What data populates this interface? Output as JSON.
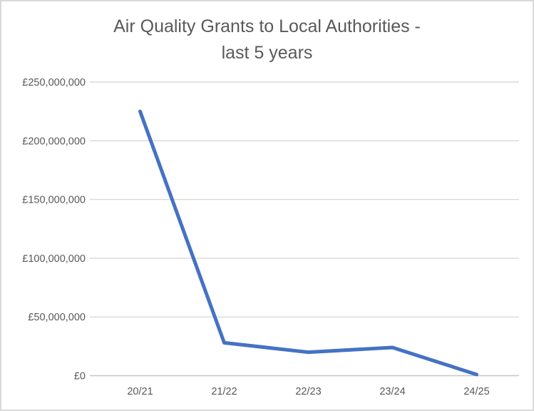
{
  "chart_data": {
    "type": "line",
    "title": "Air Quality Grants to Local Authorities - last 5 years",
    "title_lines": [
      "Air Quality Grants to Local Authorities -",
      "last 5 years"
    ],
    "categories": [
      "20/21",
      "21/22",
      "22/23",
      "23/24",
      "24/25"
    ],
    "values": [
      225000000,
      28000000,
      20000000,
      24000000,
      1000000
    ],
    "xlabel": "",
    "ylabel": "",
    "ylim": [
      0,
      250000000
    ],
    "y_tick_step": 50000000,
    "y_tick_labels": [
      "£0",
      "£50,000,000",
      "£100,000,000",
      "£150,000,000",
      "£200,000,000",
      "£250,000,000"
    ],
    "grid": true,
    "legend": false,
    "colors": {
      "line": "#4472C4",
      "gridline": "#D9D9D9",
      "axis_line": "#C6C6C6",
      "text": "#595959",
      "border": "#D9D9D9",
      "background": "#FFFFFF"
    }
  }
}
